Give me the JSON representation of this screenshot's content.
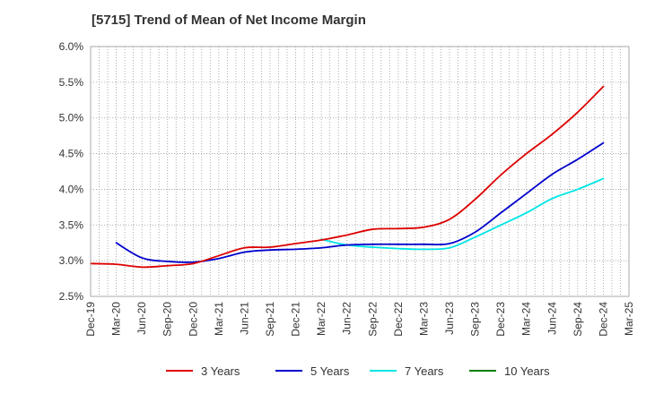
{
  "chart_data": {
    "type": "line",
    "title": "[5715]  Trend of Mean of Net Income Margin",
    "xlabel": "",
    "ylabel": "",
    "x_ticks": [
      "Dec-19",
      "Mar-20",
      "Jun-20",
      "Sep-20",
      "Dec-20",
      "Mar-21",
      "Jun-21",
      "Sep-21",
      "Dec-21",
      "Mar-22",
      "Jun-22",
      "Sep-22",
      "Dec-22",
      "Mar-23",
      "Jun-23",
      "Sep-23",
      "Dec-23",
      "Mar-24",
      "Jun-24",
      "Sep-24",
      "Dec-24",
      "Mar-25"
    ],
    "y_ticks": [
      "2.5%",
      "3.0%",
      "3.5%",
      "4.0%",
      "4.5%",
      "5.0%",
      "5.5%",
      "6.0%"
    ],
    "ylim": [
      2.5,
      6.0
    ],
    "grid": true,
    "legend_position": "bottom",
    "series": [
      {
        "name": "3 Years",
        "color": "#dd0000",
        "values": [
          2.96,
          2.95,
          2.91,
          2.93,
          2.96,
          3.07,
          3.18,
          3.19,
          3.24,
          3.29,
          3.36,
          3.44,
          3.45,
          3.47,
          3.58,
          3.86,
          4.2,
          4.5,
          4.77,
          5.08,
          5.44,
          null
        ]
      },
      {
        "name": "5 Years",
        "color": "#0000cc",
        "values": [
          null,
          3.25,
          3.04,
          2.99,
          2.98,
          3.03,
          3.12,
          3.15,
          3.16,
          3.18,
          3.22,
          3.23,
          3.23,
          3.23,
          3.24,
          3.4,
          3.67,
          3.94,
          4.21,
          4.42,
          4.65,
          null
        ]
      },
      {
        "name": "7 Years",
        "color": "#00e5e5",
        "values": [
          null,
          null,
          null,
          null,
          null,
          null,
          null,
          null,
          null,
          3.3,
          3.22,
          3.19,
          3.17,
          3.16,
          3.18,
          3.33,
          3.5,
          3.67,
          3.87,
          4.0,
          4.15,
          null
        ]
      },
      {
        "name": "10 Years",
        "color": "#008000",
        "values": [
          null,
          null,
          null,
          null,
          null,
          null,
          null,
          null,
          null,
          null,
          null,
          null,
          null,
          null,
          null,
          null,
          null,
          null,
          null,
          null,
          null,
          null
        ]
      }
    ]
  }
}
